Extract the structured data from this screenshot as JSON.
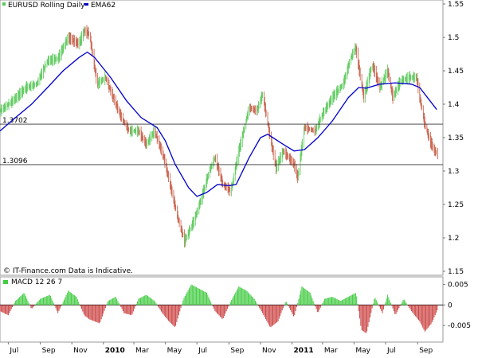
{
  "chart_data": [
    {
      "type": "line",
      "title": "EURUSD Rolling Daily",
      "xlabel": "",
      "ylabel": "",
      "x_ticks": [
        {
          "label": "Jul",
          "bold": false,
          "date": "2009-07"
        },
        {
          "label": "Sep",
          "bold": false,
          "date": "2009-09"
        },
        {
          "label": "Nov",
          "bold": false,
          "date": "2009-11"
        },
        {
          "label": "2010",
          "bold": true,
          "date": "2010-01"
        },
        {
          "label": "Mar",
          "bold": false,
          "date": "2010-03"
        },
        {
          "label": "May",
          "bold": false,
          "date": "2010-05"
        },
        {
          "label": "Jul",
          "bold": false,
          "date": "2010-07"
        },
        {
          "label": "Sep",
          "bold": false,
          "date": "2010-09"
        },
        {
          "label": "Nov",
          "bold": false,
          "date": "2010-11"
        },
        {
          "label": "2011",
          "bold": true,
          "date": "2011-01"
        },
        {
          "label": "Mar",
          "bold": false,
          "date": "2011-03"
        },
        {
          "label": "May",
          "bold": false,
          "date": "2011-05"
        },
        {
          "label": "Jul",
          "bold": false,
          "date": "2011-07"
        },
        {
          "label": "Sep",
          "bold": false,
          "date": "2011-09"
        }
      ],
      "x_range": [
        "2009-06-15",
        "2011-10-20"
      ],
      "y_ticks": [
        "1.15",
        "1.2",
        "1.25",
        "1.3",
        "1.35",
        "1.4",
        "1.45",
        "1.5",
        "1.55"
      ],
      "ylim": [
        1.15,
        1.55
      ],
      "grid": false,
      "legend": "top-left",
      "series": [
        {
          "name": "EMA62",
          "color": "#0000cc",
          "points": [
            [
              "2009-06-15",
              1.36
            ],
            [
              "2009-07-15",
              1.38
            ],
            [
              "2009-08-15",
              1.4
            ],
            [
              "2009-09-15",
              1.425
            ],
            [
              "2009-10-15",
              1.45
            ],
            [
              "2009-11-15",
              1.47
            ],
            [
              "2009-12-01",
              1.478
            ],
            [
              "2009-12-15",
              1.47
            ],
            [
              "2010-01-15",
              1.44
            ],
            [
              "2010-02-15",
              1.405
            ],
            [
              "2010-03-15",
              1.38
            ],
            [
              "2010-04-15",
              1.365
            ],
            [
              "2010-05-01",
              1.345
            ],
            [
              "2010-05-20",
              1.31
            ],
            [
              "2010-06-15",
              1.275
            ],
            [
              "2010-07-01",
              1.262
            ],
            [
              "2010-07-20",
              1.268
            ],
            [
              "2010-08-10",
              1.28
            ],
            [
              "2010-09-01",
              1.278
            ],
            [
              "2010-09-15",
              1.28
            ],
            [
              "2010-10-10",
              1.32
            ],
            [
              "2010-11-01",
              1.35
            ],
            [
              "2010-11-15",
              1.355
            ],
            [
              "2010-12-15",
              1.34
            ],
            [
              "2011-01-05",
              1.33
            ],
            [
              "2011-01-25",
              1.332
            ],
            [
              "2011-02-20",
              1.35
            ],
            [
              "2011-03-20",
              1.375
            ],
            [
              "2011-04-20",
              1.41
            ],
            [
              "2011-05-10",
              1.425
            ],
            [
              "2011-05-25",
              1.424
            ],
            [
              "2011-06-20",
              1.43
            ],
            [
              "2011-07-20",
              1.432
            ],
            [
              "2011-08-20",
              1.43
            ],
            [
              "2011-09-05",
              1.425
            ],
            [
              "2011-09-25",
              1.405
            ],
            [
              "2011-10-08",
              1.392
            ]
          ]
        }
      ],
      "price_range": {
        "name": "EURUSD",
        "color": "#55cc55",
        "points": [
          [
            "2009-06-15",
            1.39
          ],
          [
            "2009-07-10",
            1.405
          ],
          [
            "2009-08-05",
            1.425
          ],
          [
            "2009-08-25",
            1.43
          ],
          [
            "2009-09-15",
            1.465
          ],
          [
            "2009-10-05",
            1.468
          ],
          [
            "2009-10-25",
            1.5
          ],
          [
            "2009-11-15",
            1.49
          ],
          [
            "2009-11-25",
            1.51
          ],
          [
            "2009-12-05",
            1.505
          ],
          [
            "2009-12-20",
            1.43
          ],
          [
            "2010-01-05",
            1.44
          ],
          [
            "2010-01-20",
            1.41
          ],
          [
            "2010-02-05",
            1.38
          ],
          [
            "2010-02-20",
            1.36
          ],
          [
            "2010-03-10",
            1.36
          ],
          [
            "2010-03-25",
            1.34
          ],
          [
            "2010-04-10",
            1.36
          ],
          [
            "2010-04-28",
            1.32
          ],
          [
            "2010-05-10",
            1.28
          ],
          [
            "2010-05-25",
            1.23
          ],
          [
            "2010-06-07",
            1.195
          ],
          [
            "2010-06-25",
            1.225
          ],
          [
            "2010-07-10",
            1.26
          ],
          [
            "2010-07-25",
            1.3
          ],
          [
            "2010-08-05",
            1.32
          ],
          [
            "2010-08-20",
            1.28
          ],
          [
            "2010-09-05",
            1.27
          ],
          [
            "2010-09-20",
            1.33
          ],
          [
            "2010-10-10",
            1.395
          ],
          [
            "2010-10-25",
            1.39
          ],
          [
            "2010-11-05",
            1.415
          ],
          [
            "2010-11-20",
            1.35
          ],
          [
            "2010-12-01",
            1.305
          ],
          [
            "2010-12-15",
            1.33
          ],
          [
            "2011-01-05",
            1.31
          ],
          [
            "2011-01-12",
            1.29
          ],
          [
            "2011-01-25",
            1.365
          ],
          [
            "2011-02-15",
            1.36
          ],
          [
            "2011-03-01",
            1.385
          ],
          [
            "2011-03-20",
            1.41
          ],
          [
            "2011-04-10",
            1.43
          ],
          [
            "2011-04-25",
            1.47
          ],
          [
            "2011-05-04",
            1.485
          ],
          [
            "2011-05-20",
            1.41
          ],
          [
            "2011-06-05",
            1.46
          ],
          [
            "2011-06-20",
            1.425
          ],
          [
            "2011-07-05",
            1.45
          ],
          [
            "2011-07-15",
            1.41
          ],
          [
            "2011-07-30",
            1.435
          ],
          [
            "2011-08-15",
            1.44
          ],
          [
            "2011-08-30",
            1.44
          ],
          [
            "2011-09-05",
            1.41
          ],
          [
            "2011-09-15",
            1.37
          ],
          [
            "2011-09-25",
            1.345
          ],
          [
            "2011-10-04",
            1.33
          ],
          [
            "2011-10-10",
            1.325
          ]
        ]
      },
      "reference_lines": [
        {
          "value": 1.3702,
          "label": "1.3702"
        },
        {
          "value": 1.3096,
          "label": "1.3096"
        }
      ],
      "annotation": "© IT-Finance.com Data is Indicative."
    },
    {
      "type": "bar",
      "title": "MACD 12 26 7",
      "xlabel": "",
      "ylabel": "",
      "ylim": [
        -0.0075,
        0.0055
      ],
      "y_ticks": [
        "0.005",
        "0",
        "-0.005"
      ],
      "grid": false,
      "legend": "top-left",
      "positive_color": "#44cc44",
      "negative_color": "#cc4444",
      "histogram": [
        [
          "2009-06-15",
          -0.0015
        ],
        [
          "2009-07-01",
          -0.0025
        ],
        [
          "2009-07-15",
          0.001
        ],
        [
          "2009-08-01",
          0.003
        ],
        [
          "2009-08-15",
          -0.001
        ],
        [
          "2009-09-01",
          0.0015
        ],
        [
          "2009-09-20",
          0.0025
        ],
        [
          "2009-10-05",
          -0.002
        ],
        [
          "2009-10-25",
          0.0035
        ],
        [
          "2009-11-10",
          0.002
        ],
        [
          "2009-11-25",
          -0.0025
        ],
        [
          "2009-12-05",
          -0.0035
        ],
        [
          "2009-12-25",
          -0.0045
        ],
        [
          "2010-01-10",
          0.001
        ],
        [
          "2010-01-25",
          0.002
        ],
        [
          "2010-02-10",
          -0.002
        ],
        [
          "2010-02-25",
          -0.0025
        ],
        [
          "2010-03-10",
          0.0015
        ],
        [
          "2010-03-25",
          0.0025
        ],
        [
          "2010-04-10",
          0.001
        ],
        [
          "2010-04-25",
          -0.002
        ],
        [
          "2010-05-08",
          -0.004
        ],
        [
          "2010-05-20",
          -0.0055
        ],
        [
          "2010-06-05",
          0.0015
        ],
        [
          "2010-06-20",
          0.005
        ],
        [
          "2010-07-05",
          0.004
        ],
        [
          "2010-07-20",
          0.003
        ],
        [
          "2010-08-05",
          -0.0015
        ],
        [
          "2010-08-20",
          -0.0035
        ],
        [
          "2010-09-05",
          0.001
        ],
        [
          "2010-09-20",
          0.0045
        ],
        [
          "2010-10-05",
          0.0035
        ],
        [
          "2010-10-20",
          0.0015
        ],
        [
          "2010-11-05",
          -0.002
        ],
        [
          "2010-11-20",
          -0.0055
        ],
        [
          "2010-12-05",
          -0.004
        ],
        [
          "2010-12-20",
          0.001
        ],
        [
          "2011-01-05",
          -0.003
        ],
        [
          "2011-01-20",
          0.0045
        ],
        [
          "2011-02-05",
          0.003
        ],
        [
          "2011-02-20",
          -0.002
        ],
        [
          "2011-03-05",
          0.0015
        ],
        [
          "2011-03-20",
          0.002
        ],
        [
          "2011-04-05",
          0.001
        ],
        [
          "2011-04-20",
          0.002
        ],
        [
          "2011-05-05",
          0.003
        ],
        [
          "2011-05-15",
          -0.006
        ],
        [
          "2011-05-25",
          -0.007
        ],
        [
          "2011-06-10",
          0.002
        ],
        [
          "2011-06-25",
          -0.002
        ],
        [
          "2011-07-05",
          0.0025
        ],
        [
          "2011-07-20",
          -0.0025
        ],
        [
          "2011-08-05",
          0.0015
        ],
        [
          "2011-08-20",
          -0.0015
        ],
        [
          "2011-09-05",
          -0.004
        ],
        [
          "2011-09-15",
          -0.0065
        ],
        [
          "2011-09-28",
          -0.0045
        ],
        [
          "2011-10-10",
          -0.001
        ]
      ]
    }
  ]
}
